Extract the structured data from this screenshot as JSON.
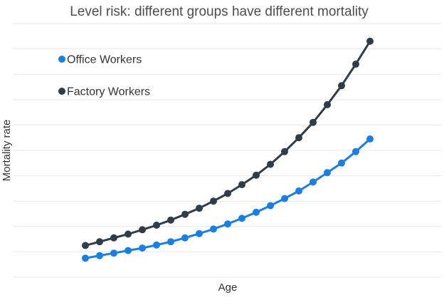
{
  "chart_data": {
    "type": "line",
    "title": "Level risk: different groups have different mortality",
    "xlabel": "Age",
    "ylabel": "Mortality rate",
    "ylim": [
      0,
      10
    ],
    "grid": true,
    "legend_position": "top-left",
    "x": [
      1,
      2,
      3,
      4,
      5,
      6,
      7,
      8,
      9,
      10,
      11,
      12,
      13,
      14,
      15,
      16,
      17,
      18,
      19,
      20,
      21
    ],
    "series": [
      {
        "name": "Office Workers",
        "color": "#1a7fe0",
        "values": [
          0.75,
          0.85,
          0.95,
          1.05,
          1.15,
          1.27,
          1.4,
          1.55,
          1.72,
          1.9,
          2.1,
          2.32,
          2.56,
          2.82,
          3.1,
          3.4,
          3.75,
          4.12,
          4.5,
          4.95,
          5.45
        ]
      },
      {
        "name": "Factory Workers",
        "color": "#2f3d4a",
        "values": [
          1.25,
          1.4,
          1.55,
          1.7,
          1.87,
          2.05,
          2.25,
          2.48,
          2.72,
          3.0,
          3.3,
          3.65,
          4.02,
          4.45,
          4.95,
          5.5,
          6.1,
          6.8,
          7.55,
          8.4,
          9.3
        ]
      }
    ]
  }
}
